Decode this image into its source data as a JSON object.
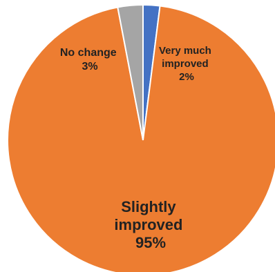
{
  "chart_data": {
    "type": "pie",
    "title": "",
    "slices": [
      {
        "name": "Very much improved",
        "value": 2,
        "label_lines": [
          "Very much",
          "improved",
          "2%"
        ],
        "color": "#4472c4"
      },
      {
        "name": "Slightly improved",
        "value": 95,
        "label_lines": [
          "Slightly",
          "improved",
          "95%"
        ],
        "color": "#ed7d31"
      },
      {
        "name": "No change",
        "value": 3,
        "label_lines": [
          "No change",
          "3%"
        ],
        "color": "#a5a5a5"
      }
    ],
    "start_angle": "12 o'clock",
    "direction": "clockwise",
    "legend": "none",
    "data_labels": "inside slices"
  }
}
